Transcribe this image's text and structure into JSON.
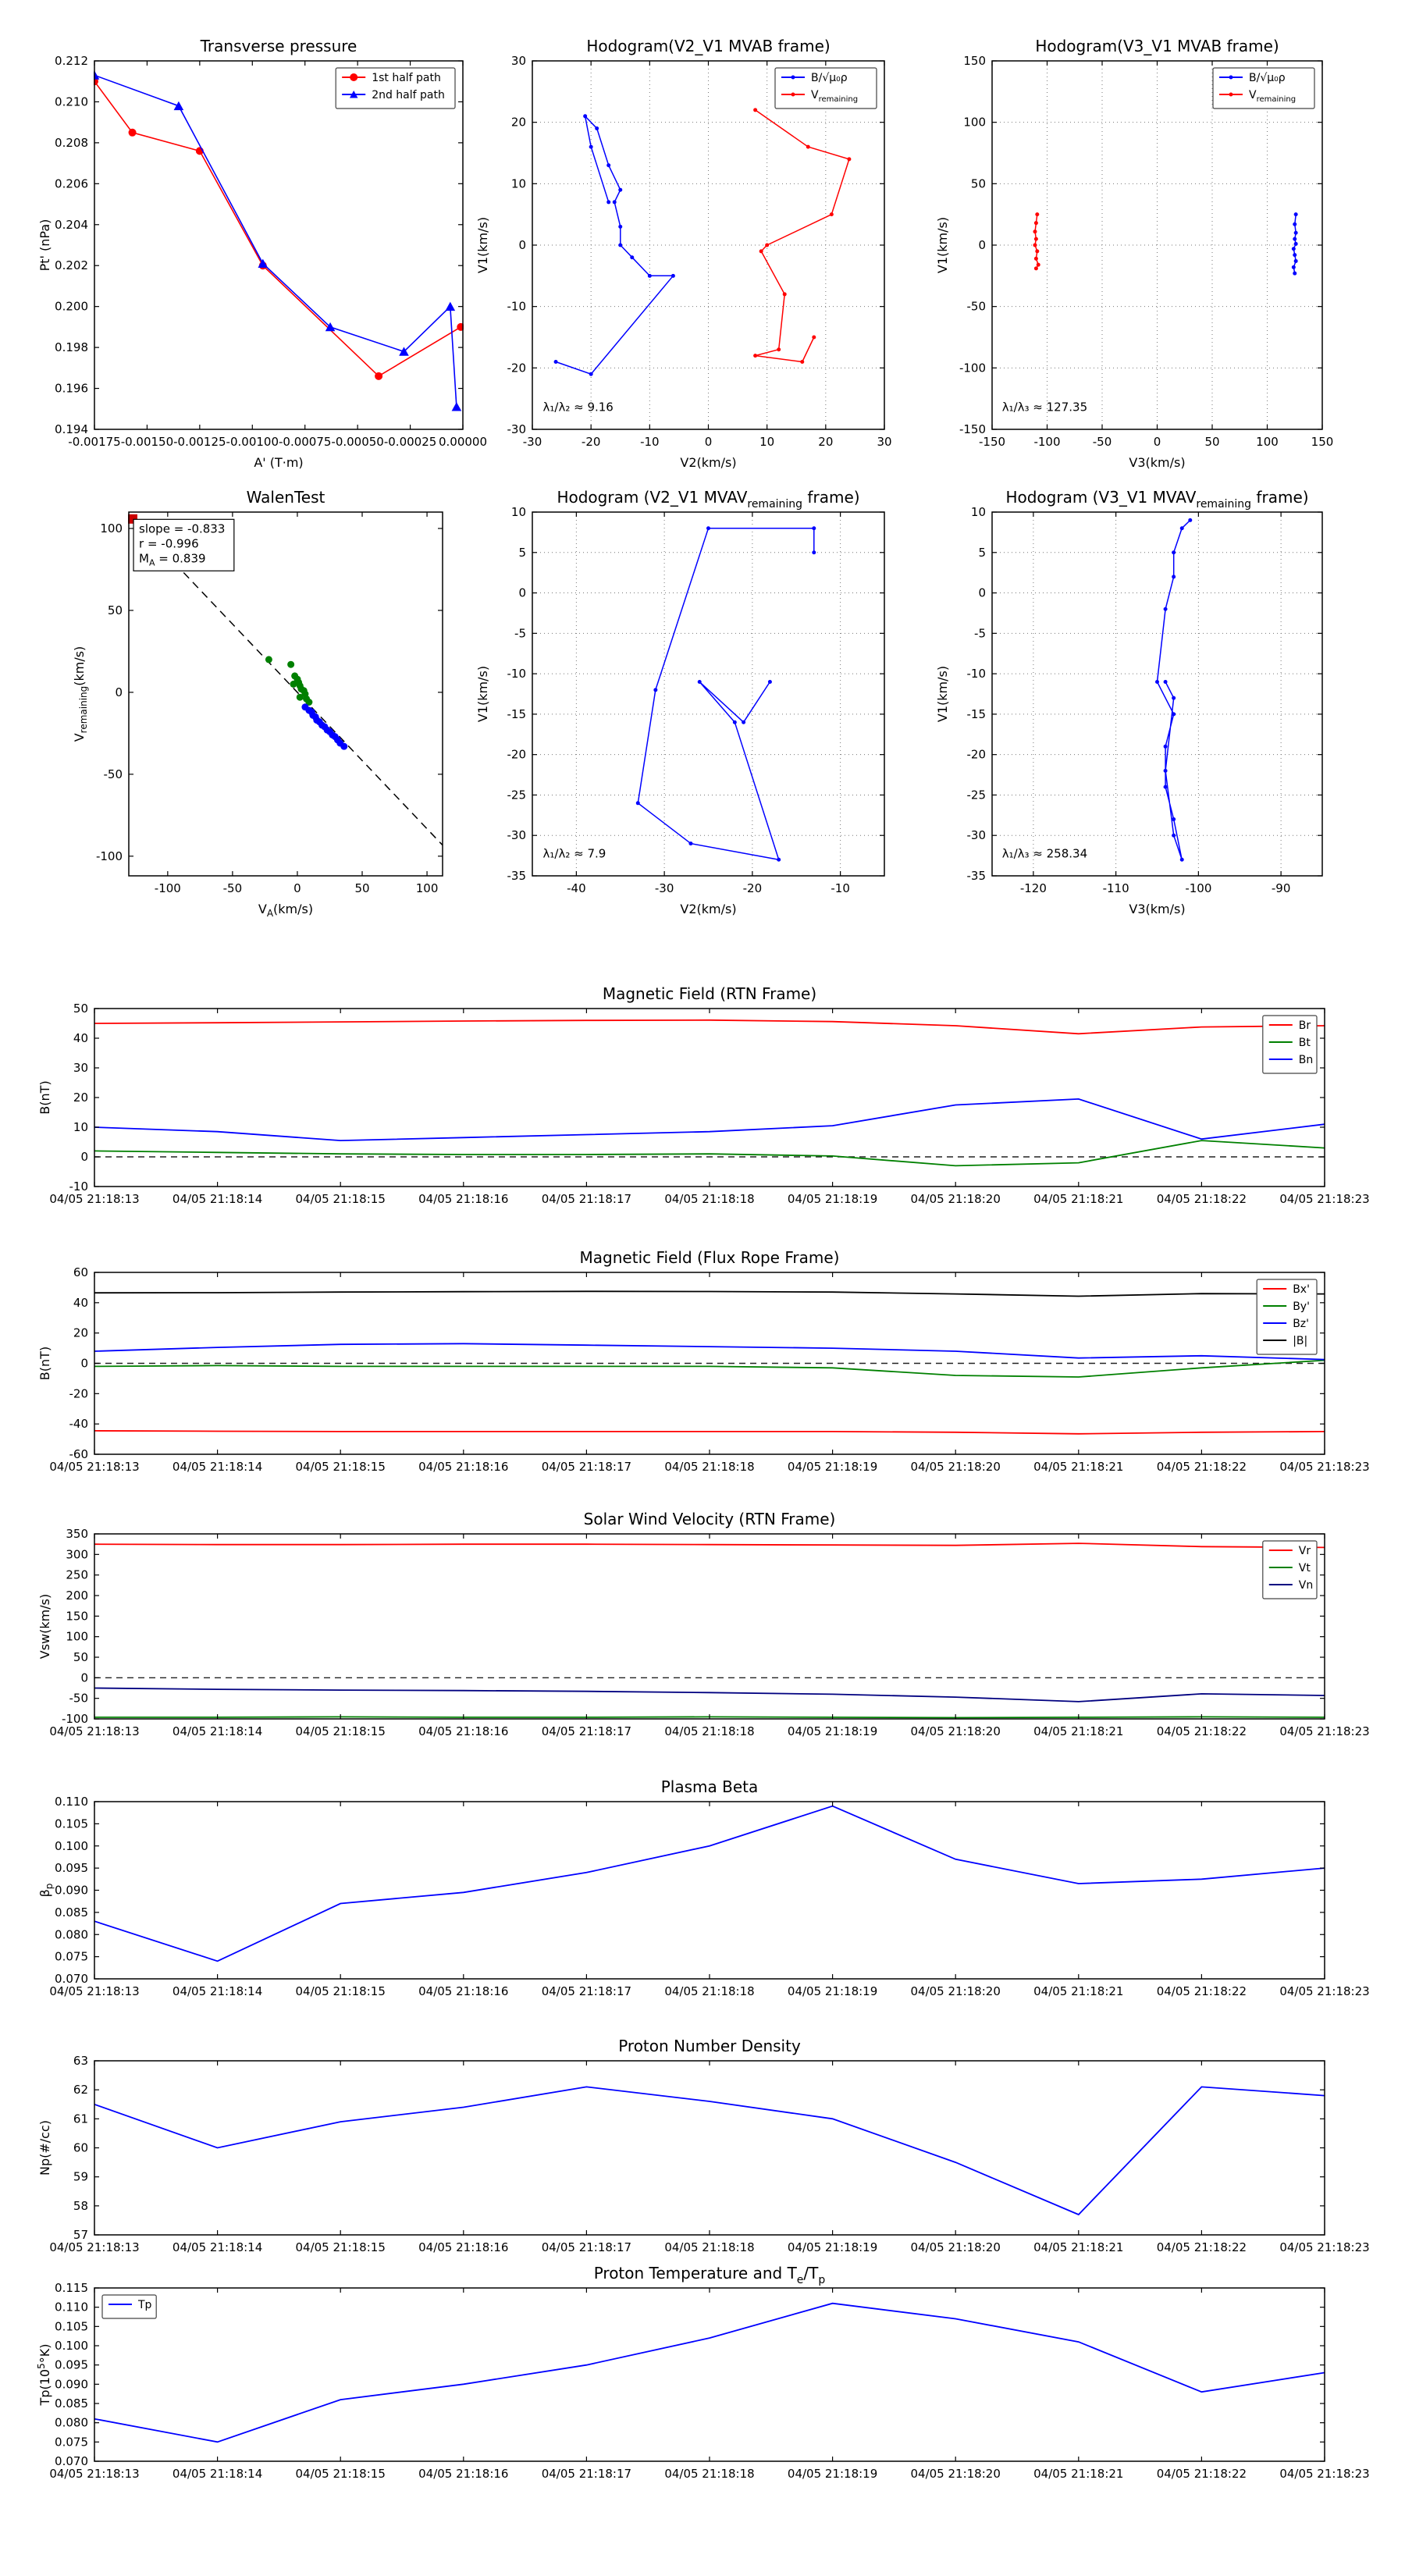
{
  "figure": {
    "background": "#ffffff",
    "time_axis": [
      "04/05 21:18:13",
      "04/05 21:18:14",
      "04/05 21:18:15",
      "04/05 21:18:16",
      "04/05 21:18:17",
      "04/05 21:18:18",
      "04/05 21:18:19",
      "04/05 21:18:20",
      "04/05 21:18:21",
      "04/05 21:18:22",
      "04/05 21:18:23"
    ]
  },
  "chart_data": [
    {
      "id": "transverse-pressure",
      "type": "line",
      "title": "Transverse pressure",
      "xlabel": "A' (T·m)",
      "ylabel": "Pt' (nPa)",
      "xlim": [
        -0.00175,
        0
      ],
      "ylim": [
        0.194,
        0.212
      ],
      "xticks": [
        -0.00175,
        -0.0015,
        -0.00125,
        -0.001,
        -0.00075,
        -0.0005,
        -0.00025,
        0
      ],
      "xtick_labels": [
        "-0.00175",
        "-0.00150",
        "-0.00125",
        "-0.00100",
        "-0.00075",
        "-0.00050",
        "-0.00025",
        "0.00000"
      ],
      "yticks": [
        0.194,
        0.196,
        0.198,
        0.2,
        0.202,
        0.204,
        0.206,
        0.208,
        0.21,
        0.212
      ],
      "ytick_labels": [
        "0.194",
        "0.196",
        "0.198",
        "0.200",
        "0.202",
        "0.204",
        "0.206",
        "0.208",
        "0.210",
        "0.212"
      ],
      "grid": false,
      "legend": {
        "pos": "ne"
      },
      "series": [
        {
          "name": "1st half path",
          "color": "#ff0000",
          "marker": "circle",
          "marker_size": 5,
          "width": 1.6,
          "x": [
            -0.00175,
            -0.00157,
            -0.00125,
            -0.00095,
            -0.0004,
            -1e-05
          ],
          "y": [
            0.211,
            0.2085,
            0.2076,
            0.202,
            0.1966,
            0.199
          ]
        },
        {
          "name": "2nd half path",
          "color": "#0000ff",
          "marker": "triangle",
          "marker_size": 6,
          "width": 1.6,
          "x": [
            -0.00175,
            -0.00135,
            -0.00095,
            -0.00063,
            -0.00028,
            -6e-05,
            -3e-05
          ],
          "y": [
            0.2113,
            0.2098,
            0.2021,
            0.199,
            0.1978,
            0.2,
            0.1951
          ]
        }
      ]
    },
    {
      "id": "hodogram-v2v1-mvab",
      "type": "line",
      "title": "Hodogram(V2_V1 MVAB frame)",
      "xlabel": "V2(km/s)",
      "ylabel": "V1(km/s)",
      "xlim": [
        -30,
        30
      ],
      "ylim": [
        -30,
        30
      ],
      "xticks": [
        -30,
        -20,
        -10,
        0,
        10,
        20,
        30
      ],
      "yticks": [
        -30,
        -20,
        -10,
        0,
        10,
        20,
        30
      ],
      "grid": true,
      "legend": {
        "pos": "ne"
      },
      "annotations": [
        {
          "fx": 0.03,
          "fy": 0.95,
          "text": "λ₁/λ₂ ≈ 9.16"
        }
      ],
      "series": [
        {
          "name": "B/√μ₀ρ",
          "color": "#0000ff",
          "marker": "dot",
          "marker_size": 2.5,
          "width": 1.5,
          "x": [
            -17,
            -20,
            -21,
            -19,
            -17,
            -15,
            -16,
            -15,
            -15,
            -13,
            -10,
            -6,
            -20,
            -26
          ],
          "y": [
            7,
            16,
            21,
            19,
            13,
            9,
            7,
            3,
            0,
            -2,
            -5,
            -5,
            -21,
            -19
          ]
        },
        {
          "name": "V_{remaining}",
          "color": "#ff0000",
          "marker": "dot",
          "marker_size": 2.5,
          "width": 1.5,
          "x": [
            8,
            17,
            24,
            21,
            10,
            9,
            13,
            12,
            8,
            16,
            18
          ],
          "y": [
            22,
            16,
            14,
            5,
            0,
            -1,
            -8,
            -17,
            -18,
            -19,
            -15
          ]
        }
      ]
    },
    {
      "id": "hodogram-v3v1-mvab",
      "type": "line",
      "title": "Hodogram(V3_V1 MVAB frame)",
      "xlabel": "V3(km/s)",
      "ylabel": "V1(km/s)",
      "xlim": [
        -150,
        150
      ],
      "ylim": [
        -150,
        150
      ],
      "xticks": [
        -150,
        -100,
        -50,
        0,
        50,
        100,
        150
      ],
      "yticks": [
        -150,
        -100,
        -50,
        0,
        50,
        100,
        150
      ],
      "grid": true,
      "legend": {
        "pos": "ne"
      },
      "annotations": [
        {
          "fx": 0.03,
          "fy": 0.95,
          "text": "λ₁/λ₃ ≈ 127.35"
        }
      ],
      "series": [
        {
          "name": "B/√μ₀ρ",
          "color": "#0000ff",
          "marker": "dot",
          "marker_size": 2.5,
          "width": 1.5,
          "x": [
            126,
            125,
            126,
            125,
            126,
            124,
            125,
            126,
            124,
            125
          ],
          "y": [
            25,
            17,
            10,
            5,
            1,
            -3,
            -8,
            -13,
            -18,
            -23
          ]
        },
        {
          "name": "V_{remaining}",
          "color": "#ff0000",
          "marker": "dot",
          "marker_size": 2.5,
          "width": 1.5,
          "x": [
            -109,
            -110,
            -111,
            -110,
            -111,
            -109,
            -110,
            -108,
            -110
          ],
          "y": [
            25,
            18,
            11,
            5,
            0,
            -5,
            -11,
            -16,
            -19
          ]
        }
      ]
    },
    {
      "id": "walen-test",
      "type": "scatter",
      "title": "WalenTest",
      "xlabel": "V_{A}(km/s)",
      "ylabel": "V_{remaining}(km/s)",
      "xlim": [
        -130,
        112
      ],
      "ylim": [
        -112,
        110
      ],
      "xticks": [
        -100,
        -50,
        0,
        50,
        100
      ],
      "yticks": [
        -100,
        -50,
        0,
        50,
        100
      ],
      "grid": false,
      "annotations": [
        {
          "fx": 0.015,
          "fy": 0.02,
          "box": true,
          "lines": [
            "slope = -0.833",
            "r = -0.996",
            "M_{A} = 0.839"
          ]
        }
      ],
      "series": [
        {
          "color": "#000000",
          "dash": true,
          "width": 1.5,
          "x": [
            -130,
            112
          ],
          "y": [
            108.29,
            -93.3
          ]
        },
        {
          "color": "#008000",
          "marker": "dot",
          "marker_size": 4.5,
          "line": false,
          "x": [
            -22,
            -5,
            -2,
            0,
            1,
            -3,
            2,
            3,
            5,
            6,
            2,
            7,
            9
          ],
          "y": [
            20,
            17,
            10,
            8,
            6,
            5,
            4,
            2,
            1,
            -1,
            -3,
            -4,
            -6
          ]
        },
        {
          "color": "#0000ff",
          "marker": "dot",
          "marker_size": 4.5,
          "line": false,
          "x": [
            6,
            9,
            11,
            12,
            14,
            15,
            17,
            19,
            21,
            23,
            25,
            27,
            29,
            31,
            33,
            36
          ],
          "y": [
            -9,
            -11,
            -12,
            -14,
            -15,
            -17,
            -18,
            -20,
            -21,
            -23,
            -24,
            -26,
            -27,
            -29,
            -31,
            -33
          ]
        },
        {
          "color": "#cc0000",
          "marker": "square",
          "marker_size": 6,
          "line": false,
          "x": [
            -127
          ],
          "y": [
            105.8
          ]
        }
      ]
    },
    {
      "id": "hodogram-v2v1-mvav",
      "type": "line",
      "title": "Hodogram (V2_V1 MVAV_{remaining} frame)",
      "xlabel": "V2(km/s)",
      "ylabel": "V1(km/s)",
      "xlim": [
        -45,
        -5
      ],
      "ylim": [
        -35,
        10
      ],
      "xticks": [
        -40,
        -30,
        -20,
        -10
      ],
      "yticks": [
        -35,
        -30,
        -25,
        -20,
        -15,
        -10,
        -5,
        0,
        5,
        10
      ],
      "grid": true,
      "annotations": [
        {
          "fx": 0.03,
          "fy": 0.95,
          "text": "λ₁/λ₂ ≈ 7.9"
        }
      ],
      "series": [
        {
          "color": "#0000ff",
          "marker": "dot",
          "marker_size": 2.5,
          "width": 1.5,
          "x": [
            -13,
            -13,
            -25,
            -31,
            -33,
            -27,
            -17,
            -22,
            -26,
            -21,
            -18
          ],
          "y": [
            5,
            8,
            8,
            -12,
            -26,
            -31,
            -33,
            -16,
            -11,
            -16,
            -11
          ]
        }
      ]
    },
    {
      "id": "hodogram-v3v1-mvav",
      "type": "line",
      "title": "Hodogram (V3_V1 MVAV_{remaining} frame)",
      "xlabel": "V3(km/s)",
      "ylabel": "V1(km/s)",
      "xlim": [
        -125,
        -85
      ],
      "ylim": [
        -35,
        10
      ],
      "xticks": [
        -120,
        -110,
        -100,
        -90
      ],
      "yticks": [
        -35,
        -30,
        -25,
        -20,
        -15,
        -10,
        -5,
        0,
        5,
        10
      ],
      "grid": true,
      "annotations": [
        {
          "fx": 0.03,
          "fy": 0.95,
          "text": "λ₁/λ₃ ≈ 258.34"
        }
      ],
      "series": [
        {
          "color": "#0000ff",
          "marker": "dot",
          "marker_size": 2.5,
          "width": 1.5,
          "x": [
            -101,
            -102,
            -103,
            -103,
            -104,
            -105,
            -103,
            -104,
            -104,
            -103,
            -102,
            -103,
            -104,
            -103,
            -104
          ],
          "y": [
            9,
            8,
            5,
            2,
            -2,
            -11,
            -15,
            -19,
            -24,
            -28,
            -33,
            -30,
            -22,
            -13,
            -11
          ]
        }
      ]
    },
    {
      "id": "b-rtn",
      "type": "line",
      "title": "Magnetic Field (RTN Frame)",
      "ylabel": "B(nT)",
      "use_time_axis": true,
      "ylim": [
        -10,
        50
      ],
      "yticks": [
        -10,
        0,
        10,
        20,
        30,
        40,
        50
      ],
      "zero_dash": true,
      "legend": {
        "pos": "ne"
      },
      "series": [
        {
          "name": "Br",
          "color": "#ff0000",
          "values": [
            45,
            45.2,
            45.5,
            45.8,
            46,
            46.1,
            45.6,
            44.2,
            41.5,
            43.8,
            44.2
          ]
        },
        {
          "name": "Bt",
          "color": "#008000",
          "values": [
            2,
            1.5,
            1,
            0.8,
            0.8,
            1,
            0.3,
            -3,
            -2,
            5.5,
            3
          ]
        },
        {
          "name": "Bn",
          "color": "#0000ff",
          "values": [
            10,
            8.5,
            5.5,
            6.5,
            7.5,
            8.5,
            10.5,
            17.5,
            19.5,
            6,
            11
          ]
        }
      ]
    },
    {
      "id": "b-fluxrope",
      "type": "line",
      "title": "Magnetic Field (Flux Rope Frame)",
      "ylabel": "B(nT)",
      "use_time_axis": true,
      "ylim": [
        -60,
        60
      ],
      "yticks": [
        -60,
        -40,
        -20,
        0,
        20,
        40,
        60
      ],
      "zero_dash": true,
      "legend": {
        "pos": "ne"
      },
      "series": [
        {
          "name": "Bx'",
          "color": "#ff0000",
          "values": [
            -44.5,
            -44.8,
            -45,
            -45,
            -45,
            -45,
            -45,
            -45.5,
            -46.5,
            -45.5,
            -45
          ]
        },
        {
          "name": "By'",
          "color": "#008000",
          "values": [
            -2,
            -1.5,
            -2,
            -2,
            -2,
            -2,
            -3,
            -8,
            -9,
            -3,
            2
          ]
        },
        {
          "name": "Bz'",
          "color": "#0000ff",
          "values": [
            8,
            10.5,
            12.5,
            13,
            12,
            11,
            10,
            8,
            3.5,
            5,
            2.5
          ]
        },
        {
          "name": "|B|",
          "color": "#000000",
          "values": [
            46.5,
            46.6,
            47,
            47.3,
            47.5,
            47.4,
            47,
            45.8,
            44.3,
            46,
            45.8
          ]
        }
      ]
    },
    {
      "id": "vsw-rtn",
      "type": "line",
      "title": "Solar Wind Velocity (RTN Frame)",
      "ylabel": "Vsw(km/s)",
      "use_time_axis": true,
      "ylim": [
        -100,
        350
      ],
      "yticks": [
        -100,
        -50,
        0,
        50,
        100,
        150,
        200,
        250,
        300,
        350
      ],
      "zero_dash": true,
      "legend": {
        "pos": "ne"
      },
      "series": [
        {
          "name": "Vr",
          "color": "#ff0000",
          "values": [
            325,
            324,
            324,
            325,
            325,
            324,
            323,
            322,
            327,
            319,
            317
          ]
        },
        {
          "name": "Vt",
          "color": "#008000",
          "values": [
            -96,
            -96,
            -95,
            -96,
            -96,
            -95,
            -96,
            -97,
            -96,
            -95,
            -96
          ]
        },
        {
          "name": "Vn",
          "color": "#000080",
          "values": [
            -25,
            -28,
            -30,
            -31,
            -33,
            -36,
            -40,
            -47,
            -58,
            -39,
            -43
          ]
        }
      ]
    },
    {
      "id": "plasma-beta",
      "type": "line",
      "title": "Plasma Beta",
      "ylabel": "β_{p}",
      "use_time_axis": true,
      "ylim": [
        0.07,
        0.11
      ],
      "yticks": [
        0.07,
        0.075,
        0.08,
        0.085,
        0.09,
        0.095,
        0.1,
        0.105,
        0.11
      ],
      "ytick_labels": [
        "0.070",
        "0.075",
        "0.080",
        "0.085",
        "0.090",
        "0.095",
        "0.100",
        "0.105",
        "0.110"
      ],
      "series": [
        {
          "color": "#0000ff",
          "values": [
            0.083,
            0.074,
            0.087,
            0.0895,
            0.094,
            0.1,
            0.109,
            0.097,
            0.0915,
            0.0925,
            0.095
          ]
        }
      ]
    },
    {
      "id": "proton-density",
      "type": "line",
      "title": "Proton Number Density",
      "ylabel": "Np(#/cc)",
      "use_time_axis": true,
      "ylim": [
        57,
        63
      ],
      "yticks": [
        57,
        58,
        59,
        60,
        61,
        62,
        63
      ],
      "series": [
        {
          "color": "#0000ff",
          "values": [
            61.5,
            60,
            60.9,
            61.4,
            62.1,
            61.6,
            61,
            59.5,
            57.7,
            62.1,
            61.8
          ]
        }
      ]
    },
    {
      "id": "proton-temp",
      "type": "line",
      "title": "Proton Temperature and T_{e}/T_{p}",
      "ylabel": "Tp(10^{5}°K)",
      "use_time_axis": true,
      "ylim": [
        0.07,
        0.115
      ],
      "yticks": [
        0.07,
        0.075,
        0.08,
        0.085,
        0.09,
        0.095,
        0.1,
        0.105,
        0.11,
        0.115
      ],
      "ytick_labels": [
        "0.070",
        "0.075",
        "0.080",
        "0.085",
        "0.090",
        "0.095",
        "0.100",
        "0.105",
        "0.110",
        "0.115"
      ],
      "legend": {
        "pos": "nw"
      },
      "series": [
        {
          "name": "Tp",
          "color": "#0000ff",
          "values": [
            0.081,
            0.075,
            0.086,
            0.09,
            0.095,
            0.102,
            0.111,
            0.107,
            0.101,
            0.088,
            0.093
          ]
        }
      ]
    }
  ]
}
